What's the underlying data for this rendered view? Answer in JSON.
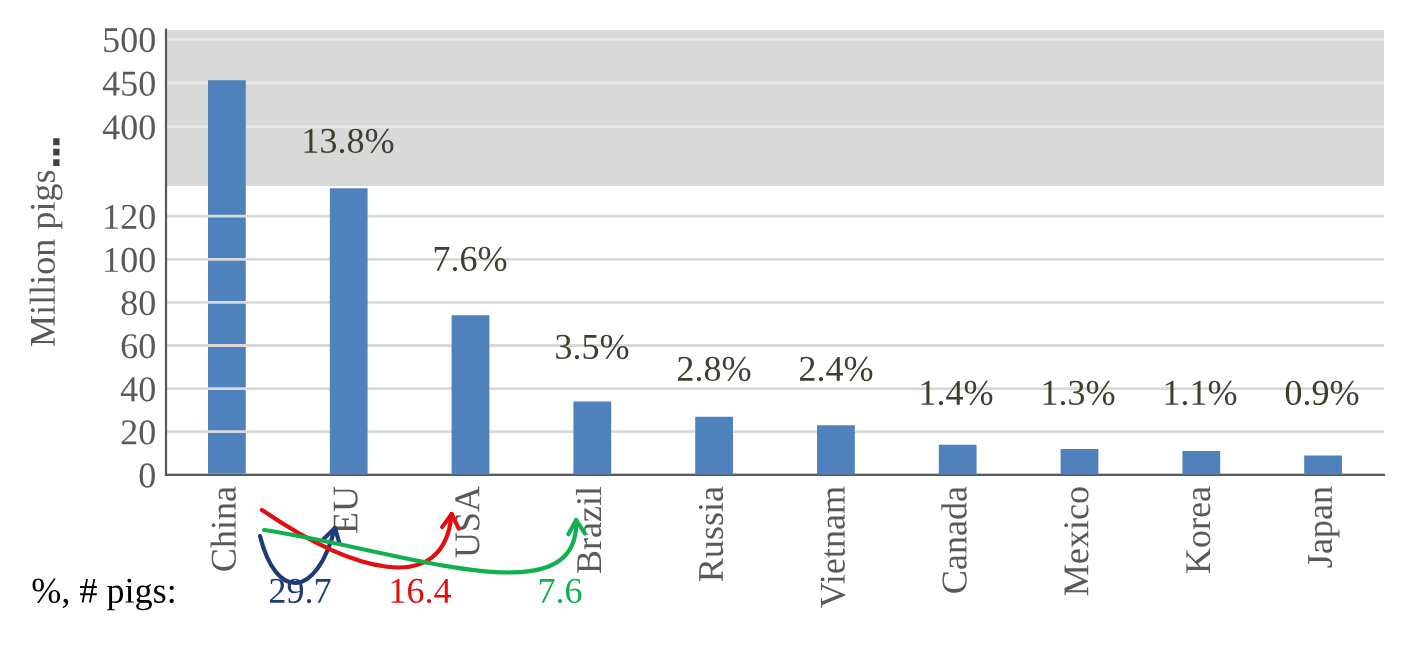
{
  "chart_data": [
    {
      "type": "bar",
      "categories": [
        null,
        null,
        null,
        null,
        null,
        null,
        null,
        null,
        null,
        null
      ],
      "values": [
        453,
        null,
        null,
        null,
        null,
        null,
        null,
        null,
        null,
        null
      ],
      "color": "#4f81bd",
      "ylim": [
        332,
        511
      ],
      "yticks": [
        400,
        450,
        500
      ],
      "grid": "y",
      "tick_labels": "y",
      "bands": [
        {
          "axis": "y",
          "from": 332,
          "to": 511,
          "color": "#d9d9d9"
        }
      ],
      "annotations": [
        "⋮"
      ]
    },
    {
      "type": "bar",
      "categories": [
        "China",
        "EU",
        "USA",
        "Brazil",
        "Russia",
        "Vietnam",
        "Canada",
        "Mexico",
        "Korea",
        "Japan"
      ],
      "values": [
        null,
        133,
        74,
        34,
        27,
        23,
        14,
        12,
        11,
        9
      ],
      "color": "#4f81bd",
      "ylim": [
        0,
        134
      ],
      "yticks": [
        0,
        20,
        40,
        60,
        80,
        100,
        120
      ],
      "grid": "y",
      "ylabel": "Million pigs",
      "annotations": [
        "13.8%",
        "7.6%",
        "3.5%",
        "2.8%",
        "2.4%",
        "1.4%",
        "1.3%",
        "1.1%",
        "0.9%",
        "%, # pigs:",
        "29.7",
        "16.4",
        "7.6"
      ]
    }
  ]
}
